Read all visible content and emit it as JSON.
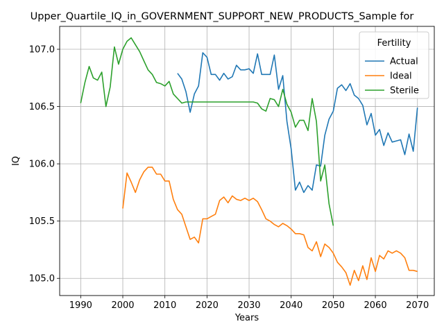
{
  "chart_data": {
    "type": "line",
    "title": "Upper_Quartile_IQ_in_GOVERNMENT_SUPPORT_NEW_PRODUCTS_Sample for",
    "xlabel": "Years",
    "ylabel": "IQ",
    "xlim": [
      1985,
      2074
    ],
    "ylim": [
      104.85,
      107.2
    ],
    "xticks": [
      1990,
      2000,
      2010,
      2020,
      2030,
      2040,
      2050,
      2060,
      2070
    ],
    "yticks": [
      105.0,
      105.5,
      106.0,
      106.5,
      107.0
    ],
    "ytick_labels": [
      "105.0",
      "105.5",
      "106.0",
      "106.5",
      "107.0"
    ],
    "grid": true,
    "legend": {
      "title": "Fertility",
      "placement": "top-right"
    },
    "series": [
      {
        "name": "Actual",
        "color": "#1f77b4",
        "x": [
          2013,
          2014,
          2015,
          2016,
          2017,
          2018,
          2019,
          2020,
          2021,
          2022,
          2023,
          2024,
          2025,
          2026,
          2027,
          2028,
          2029,
          2030,
          2031,
          2032,
          2033,
          2034,
          2035,
          2036,
          2037,
          2038,
          2039,
          2040,
          2041,
          2042,
          2043,
          2044,
          2045,
          2046,
          2047,
          2048,
          2049,
          2050,
          2051,
          2052,
          2053,
          2054,
          2055,
          2056,
          2057,
          2058,
          2059,
          2060,
          2061,
          2062,
          2063,
          2064,
          2065,
          2066,
          2067,
          2068,
          2069,
          2070
        ],
        "values": [
          106.79,
          106.74,
          106.63,
          106.45,
          106.61,
          106.68,
          106.97,
          106.93,
          106.78,
          106.78,
          106.73,
          106.79,
          106.74,
          106.76,
          106.86,
          106.82,
          106.82,
          106.83,
          106.79,
          106.96,
          106.78,
          106.78,
          106.78,
          106.95,
          106.65,
          106.77,
          106.37,
          106.13,
          105.77,
          105.84,
          105.75,
          105.81,
          105.77,
          105.99,
          105.98,
          106.25,
          106.39,
          106.46,
          106.66,
          106.69,
          106.64,
          106.7,
          106.6,
          106.57,
          106.51,
          106.34,
          106.44,
          106.25,
          106.3,
          106.16,
          106.27,
          106.19,
          106.2,
          106.21,
          106.08,
          106.26,
          106.11,
          106.49
        ]
      },
      {
        "name": "Ideal",
        "color": "#ff7f0e",
        "x": [
          2000,
          2001,
          2002,
          2003,
          2004,
          2005,
          2006,
          2007,
          2008,
          2009,
          2010,
          2011,
          2012,
          2013,
          2014,
          2015,
          2016,
          2017,
          2018,
          2019,
          2020,
          2021,
          2022,
          2023,
          2024,
          2025,
          2026,
          2027,
          2028,
          2029,
          2030,
          2031,
          2032,
          2033,
          2034,
          2035,
          2036,
          2037,
          2038,
          2039,
          2040,
          2041,
          2042,
          2043,
          2044,
          2045,
          2046,
          2047,
          2048,
          2049,
          2050,
          2051,
          2052,
          2053,
          2054,
          2055,
          2056,
          2057,
          2058,
          2059,
          2060,
          2061,
          2062,
          2063,
          2064,
          2065,
          2066,
          2067,
          2068,
          2069,
          2070
        ],
        "values": [
          105.61,
          105.92,
          105.84,
          105.75,
          105.86,
          105.93,
          105.97,
          105.97,
          105.91,
          105.91,
          105.85,
          105.85,
          105.69,
          105.6,
          105.56,
          105.45,
          105.34,
          105.36,
          105.31,
          105.52,
          105.52,
          105.54,
          105.56,
          105.68,
          105.71,
          105.66,
          105.72,
          105.69,
          105.68,
          105.7,
          105.68,
          105.7,
          105.67,
          105.6,
          105.52,
          105.5,
          105.47,
          105.45,
          105.48,
          105.46,
          105.43,
          105.39,
          105.39,
          105.38,
          105.27,
          105.24,
          105.32,
          105.19,
          105.3,
          105.27,
          105.22,
          105.14,
          105.1,
          105.05,
          104.94,
          105.07,
          104.98,
          105.11,
          104.99,
          105.18,
          105.06,
          105.2,
          105.17,
          105.24,
          105.22,
          105.24,
          105.22,
          105.18,
          105.07,
          105.07,
          105.06
        ]
      },
      {
        "name": "Sterile",
        "color": "#2ca02c",
        "x": [
          1990,
          1991,
          1992,
          1993,
          1994,
          1995,
          1996,
          1997,
          1998,
          1999,
          2000,
          2001,
          2002,
          2003,
          2004,
          2005,
          2006,
          2007,
          2008,
          2009,
          2010,
          2011,
          2012,
          2013,
          2014,
          2015,
          2016,
          2017,
          2018,
          2019,
          2020,
          2021,
          2022,
          2023,
          2024,
          2025,
          2026,
          2027,
          2028,
          2029,
          2030,
          2031,
          2032,
          2033,
          2034,
          2035,
          2036,
          2037,
          2038,
          2039,
          2040,
          2041,
          2042,
          2043,
          2044,
          2045,
          2046,
          2047,
          2048,
          2049,
          2050
        ],
        "values": [
          106.53,
          106.71,
          106.85,
          106.75,
          106.73,
          106.8,
          106.5,
          106.67,
          107.02,
          106.87,
          107.0,
          107.07,
          107.1,
          107.04,
          106.98,
          106.9,
          106.82,
          106.78,
          106.71,
          106.7,
          106.68,
          106.72,
          106.61,
          106.57,
          106.53,
          106.54,
          106.54,
          106.54,
          106.54,
          106.54,
          106.54,
          106.54,
          106.54,
          106.54,
          106.54,
          106.54,
          106.54,
          106.54,
          106.54,
          106.54,
          106.54,
          106.54,
          106.53,
          106.48,
          106.46,
          106.57,
          106.56,
          106.5,
          106.65,
          106.52,
          106.45,
          106.32,
          106.38,
          106.38,
          106.29,
          106.57,
          106.37,
          105.85,
          105.99,
          105.65,
          105.46
        ]
      }
    ]
  }
}
